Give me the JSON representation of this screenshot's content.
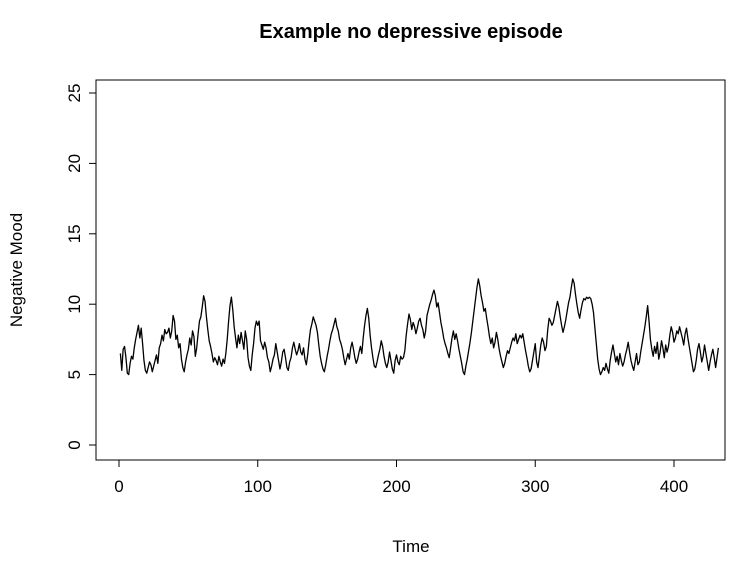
{
  "chart_data": {
    "type": "line",
    "title": "Example no depressive episode",
    "xlabel": "Time",
    "ylabel": "Negative Mood",
    "xlim": [
      1,
      420
    ],
    "ylim": [
      0,
      25
    ],
    "xticks": [
      0,
      100,
      200,
      300,
      400
    ],
    "yticks": [
      0,
      5,
      10,
      15,
      20,
      25
    ],
    "grid": false,
    "line_color": "#000000",
    "series": [
      {
        "x_start": 1,
        "x_step": 1,
        "values": [
          6.5,
          5.3,
          6.8,
          7.0,
          6.2,
          5.1,
          5.0,
          5.8,
          6.3,
          6.1,
          6.9,
          7.5,
          8.0,
          8.5,
          7.6,
          8.3,
          7.2,
          6.0,
          5.3,
          5.1,
          5.5,
          5.9,
          5.7,
          5.2,
          5.6,
          6.0,
          6.4,
          5.8,
          6.9,
          7.2,
          7.8,
          7.4,
          8.2,
          7.9,
          8.0,
          8.3,
          7.6,
          8.1,
          9.2,
          8.8,
          7.5,
          7.8,
          6.9,
          7.2,
          6.1,
          5.5,
          5.2,
          5.9,
          6.4,
          6.8,
          7.6,
          7.1,
          8.1,
          7.7,
          6.3,
          6.9,
          7.9,
          8.8,
          9.1,
          9.8,
          10.6,
          10.2,
          9.1,
          8.2,
          7.4,
          7.0,
          6.5,
          5.9,
          6.2,
          6.0,
          5.7,
          6.3,
          5.9,
          5.6,
          6.1,
          5.8,
          6.5,
          7.5,
          8.8,
          9.9,
          10.5,
          9.6,
          8.4,
          7.6,
          6.9,
          7.8,
          7.2,
          8.0,
          7.4,
          6.8,
          8.1,
          7.5,
          6.2,
          5.6,
          5.3,
          6.4,
          7.2,
          8.3,
          8.8,
          8.5,
          8.8,
          7.4,
          7.1,
          6.8,
          7.3,
          6.9,
          6.2,
          5.9,
          5.2,
          5.6,
          6.1,
          6.4,
          7.2,
          6.6,
          6.0,
          5.4,
          5.9,
          6.6,
          6.8,
          6.2,
          5.5,
          5.3,
          5.9,
          6.2,
          6.9,
          7.3,
          6.8,
          6.4,
          6.7,
          7.2,
          6.6,
          6.4,
          6.9,
          6.1,
          5.7,
          6.4,
          7.4,
          8.2,
          8.6,
          9.1,
          8.8,
          8.5,
          8.0,
          7.1,
          6.3,
          5.8,
          5.4,
          5.2,
          5.7,
          6.3,
          6.8,
          7.4,
          7.9,
          8.2,
          8.6,
          9.0,
          8.4,
          8.1,
          7.5,
          7.2,
          6.8,
          6.2,
          5.7,
          6.1,
          6.5,
          6.1,
          6.9,
          7.3,
          6.8,
          6.2,
          5.8,
          6.1,
          6.6,
          7.0,
          6.5,
          7.6,
          8.5,
          9.2,
          9.7,
          9.0,
          7.8,
          6.9,
          6.2,
          5.6,
          5.5,
          5.9,
          6.4,
          6.8,
          7.4,
          7.0,
          6.3,
          5.8,
          5.5,
          5.9,
          6.6,
          6.0,
          5.4,
          5.1,
          6.0,
          6.4,
          5.9,
          5.7,
          6.3,
          6.1,
          6.2,
          6.7,
          7.8,
          8.6,
          9.3,
          8.9,
          8.2,
          8.7,
          8.4,
          7.9,
          8.3,
          8.8,
          9.0,
          8.5,
          8.2,
          7.6,
          8.1,
          9.2,
          9.6,
          10.0,
          10.3,
          10.7,
          11.0,
          10.6,
          9.8,
          10.1,
          9.4,
          8.7,
          8.2,
          7.6,
          7.2,
          6.9,
          6.5,
          6.2,
          6.9,
          7.6,
          8.1,
          7.5,
          7.9,
          7.4,
          6.8,
          6.3,
          5.8,
          5.2,
          5.0,
          5.6,
          6.1,
          6.7,
          7.3,
          8.0,
          8.8,
          9.6,
          10.4,
          11.2,
          11.8,
          11.3,
          10.6,
          10.1,
          9.5,
          9.7,
          9.0,
          8.4,
          7.7,
          7.2,
          7.6,
          6.9,
          7.3,
          8.0,
          7.5,
          6.8,
          6.3,
          5.9,
          5.5,
          5.8,
          6.3,
          6.7,
          6.5,
          6.9,
          7.3,
          7.6,
          7.4,
          7.9,
          7.2,
          7.5,
          7.8,
          7.6,
          7.9,
          7.3,
          6.7,
          6.2,
          5.6,
          5.2,
          5.4,
          6.0,
          6.6,
          7.2,
          5.9,
          5.5,
          6.3,
          7.1,
          7.6,
          7.3,
          6.7,
          7.0,
          8.2,
          9.0,
          8.8,
          8.5,
          8.7,
          9.2,
          9.7,
          10.2,
          9.8,
          9.1,
          8.5,
          8.0,
          8.4,
          8.9,
          9.5,
          10.1,
          10.5,
          11.2,
          11.8,
          11.5,
          10.7,
          10.0,
          9.4,
          9.0,
          9.6,
          10.1,
          10.4,
          10.3,
          10.5,
          10.4,
          10.5,
          10.4,
          10.0,
          9.4,
          8.3,
          7.2,
          6.1,
          5.4,
          5.0,
          5.2,
          5.5,
          5.3,
          5.8,
          5.4,
          5.1,
          6.0,
          6.6,
          7.1,
          6.5,
          5.9,
          6.3,
          5.7,
          6.5,
          6.0,
          5.6,
          5.9,
          6.4,
          6.8,
          7.3,
          6.6,
          6.0,
          5.6,
          5.3,
          5.9,
          6.5,
          5.7,
          5.9,
          6.6,
          7.2,
          7.8,
          8.4,
          9.1,
          9.9,
          8.8,
          7.5,
          6.8,
          6.3,
          7.0,
          6.5,
          7.3,
          6.1,
          6.6,
          7.4,
          6.9,
          6.2,
          7.1,
          6.6,
          7.0,
          7.8,
          8.4,
          8.0,
          7.3,
          7.6,
          8.1,
          7.9,
          8.4,
          8.0,
          7.6,
          7.1,
          7.9,
          8.3,
          7.6,
          7.0,
          6.4,
          5.8,
          5.2,
          5.4,
          6.0,
          6.8,
          7.2,
          6.6,
          5.9,
          6.3,
          7.1,
          6.5,
          5.9,
          5.3,
          5.9,
          6.4,
          6.8,
          6.2,
          5.5,
          6.2,
          6.9
        ]
      }
    ]
  }
}
